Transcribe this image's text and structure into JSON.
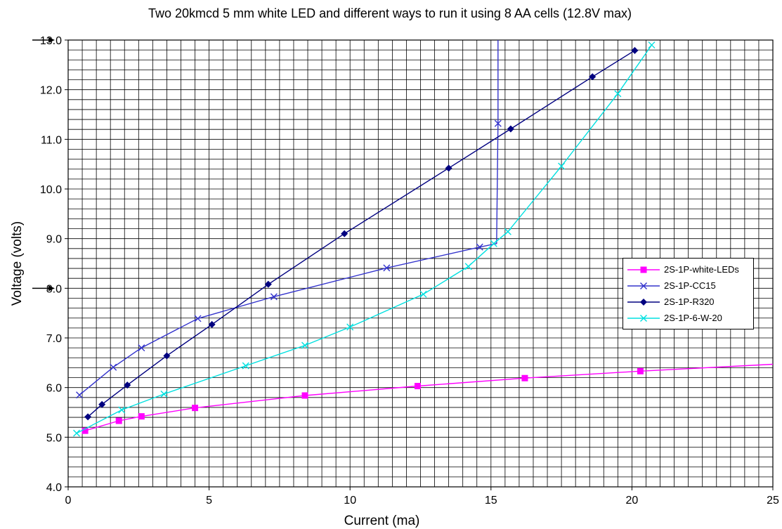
{
  "chart_data": {
    "type": "line",
    "title": "Two 20kmcd 5 mm white LED and different ways to run it using 8 AA cells (12.8V max)",
    "xlabel": "Current (ma)",
    "ylabel": "Voltage (volts)",
    "xlim": [
      0,
      25
    ],
    "ylim": [
      4.0,
      13.0
    ],
    "x_ticks": [
      "0",
      "5",
      "10",
      "15",
      "20",
      "25"
    ],
    "y_ticks": [
      "4.0",
      "5.0",
      "6.0",
      "7.0",
      "8.0",
      "9.0",
      "10.0",
      "11.0",
      "12.0",
      "13.0"
    ],
    "grid": true,
    "legend_position": "right",
    "annotations": [
      {
        "type": "arrow",
        "y": 13.0
      },
      {
        "type": "arrow",
        "y": 8.0
      }
    ],
    "series": [
      {
        "name": "2S-1P-white-LEDs",
        "color": "#ff00ff",
        "marker": "square",
        "x": [
          0.6,
          1.8,
          2.6,
          4.5,
          8.4,
          12.4,
          16.2,
          20.3,
          25.0
        ],
        "y": [
          5.13,
          5.33,
          5.42,
          5.59,
          5.84,
          6.03,
          6.19,
          6.33,
          6.47
        ],
        "marked": [
          true,
          true,
          true,
          true,
          true,
          true,
          true,
          true,
          false
        ]
      },
      {
        "name": "2S-1P-CC15",
        "color": "#3333cc",
        "marker": "x",
        "x": [
          0.4,
          1.6,
          2.6,
          4.6,
          7.3,
          11.3,
          14.6,
          15.2,
          15.25,
          15.25
        ],
        "y": [
          5.85,
          6.41,
          6.8,
          7.39,
          7.83,
          8.41,
          8.83,
          8.9,
          11.32,
          13.0
        ],
        "marked": [
          true,
          true,
          true,
          true,
          true,
          true,
          true,
          false,
          true,
          false
        ]
      },
      {
        "name": "2S-1P-R320",
        "color": "#000080",
        "marker": "diamond",
        "x": [
          0.7,
          1.2,
          2.1,
          3.5,
          5.1,
          7.1,
          9.8,
          13.5,
          15.7,
          18.6,
          20.1
        ],
        "y": [
          5.41,
          5.66,
          6.05,
          6.64,
          7.27,
          8.08,
          9.1,
          10.42,
          11.21,
          12.26,
          12.79
        ],
        "marked": [
          true,
          true,
          true,
          true,
          true,
          true,
          true,
          true,
          true,
          true,
          true
        ]
      },
      {
        "name": "2S-1P-6-W-20",
        "color": "#00e0e0",
        "marker": "x",
        "x": [
          0.3,
          1.9,
          3.4,
          6.3,
          8.4,
          10.0,
          12.6,
          14.2,
          15.1,
          15.6,
          17.5,
          19.5,
          20.7
        ],
        "y": [
          5.08,
          5.55,
          5.87,
          6.44,
          6.85,
          7.22,
          7.88,
          8.44,
          8.9,
          9.14,
          10.46,
          11.92,
          12.9
        ],
        "marked": [
          true,
          true,
          true,
          true,
          true,
          true,
          true,
          true,
          true,
          true,
          true,
          true,
          true
        ]
      }
    ]
  }
}
